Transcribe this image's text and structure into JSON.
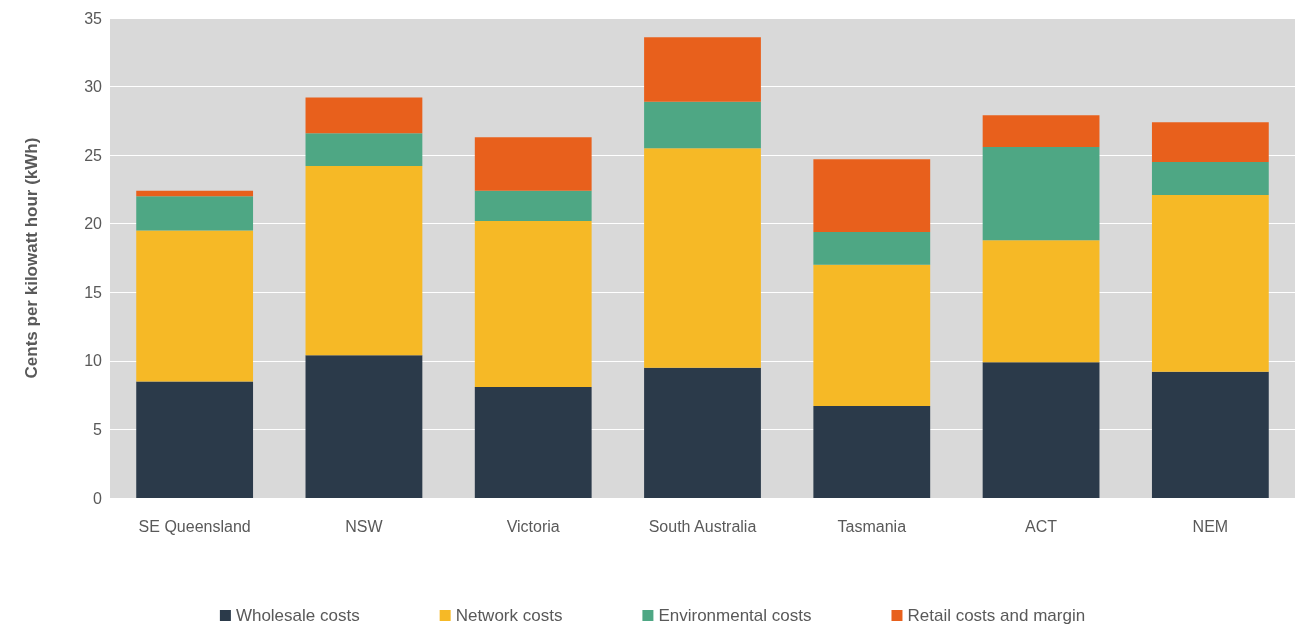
{
  "chart_data": {
    "type": "bar",
    "stacked": true,
    "ylabel": "Cents per kilowatt hour (kWh)",
    "categories": [
      "SE Queensland",
      "NSW",
      "Victoria",
      "South Australia",
      "Tasmania",
      "ACT",
      "NEM"
    ],
    "series": [
      {
        "name": "Wholesale costs",
        "color": "#2b3a4a",
        "values": [
          8.5,
          10.4,
          8.1,
          9.5,
          6.7,
          9.9,
          9.2
        ]
      },
      {
        "name": "Network costs",
        "color": "#f6b926",
        "values": [
          11.0,
          13.8,
          12.1,
          16.0,
          10.3,
          8.9,
          12.9
        ]
      },
      {
        "name": "Environmental costs",
        "color": "#4ea784",
        "values": [
          2.5,
          2.4,
          2.2,
          3.4,
          2.4,
          6.8,
          2.4
        ]
      },
      {
        "name": "Retail costs and margin",
        "color": "#e8601c",
        "values": [
          0.4,
          2.6,
          3.9,
          4.7,
          5.3,
          2.3,
          2.9
        ]
      }
    ],
    "ylim": [
      0,
      35
    ],
    "yticks": [
      0,
      5,
      10,
      15,
      20,
      25,
      30,
      35
    ],
    "grid": "y",
    "legend": "bottom"
  }
}
